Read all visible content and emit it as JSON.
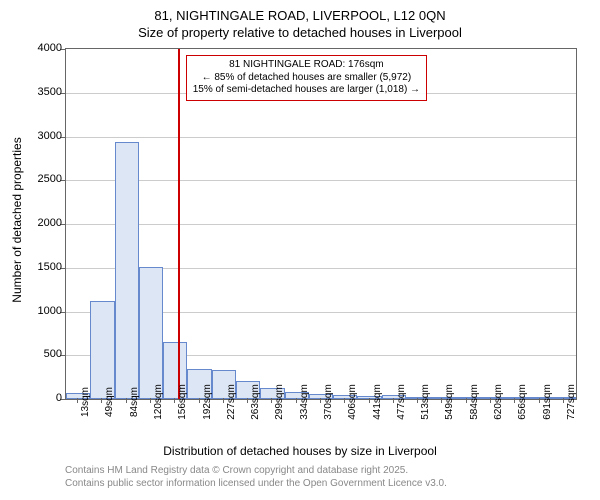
{
  "header": {
    "title": "81, NIGHTINGALE ROAD, LIVERPOOL, L12 0QN",
    "subtitle": "Size of property relative to detached houses in Liverpool"
  },
  "chart": {
    "type": "histogram",
    "ylabel": "Number of detached properties",
    "xlabel": "Distribution of detached houses by size in Liverpool",
    "ylim": [
      0,
      4000
    ],
    "ytick_step": 500,
    "yticks": [
      0,
      500,
      1000,
      1500,
      2000,
      2500,
      3000,
      3500,
      4000
    ],
    "xtick_labels": [
      "13sqm",
      "49sqm",
      "84sqm",
      "120sqm",
      "156sqm",
      "192sqm",
      "227sqm",
      "263sqm",
      "299sqm",
      "334sqm",
      "370sqm",
      "406sqm",
      "441sqm",
      "477sqm",
      "513sqm",
      "549sqm",
      "584sqm",
      "620sqm",
      "656sqm",
      "691sqm",
      "727sqm"
    ],
    "bar_values": [
      70,
      1120,
      2940,
      1510,
      650,
      340,
      330,
      210,
      130,
      80,
      60,
      50,
      40,
      50,
      10,
      10,
      8,
      6,
      5,
      4,
      3
    ],
    "bar_fill": "#dde6f4",
    "bar_border": "#6688cc",
    "grid_color": "#cccccc",
    "axis_color": "#666666",
    "background_color": "#ffffff",
    "marker": {
      "position_index": 4.6,
      "color": "#cc0000"
    },
    "annotation": {
      "line1": "81 NIGHTINGALE ROAD: 176sqm",
      "line2": "← 85% of detached houses are smaller (5,972)",
      "line3": "15% of semi-detached houses are larger (1,018) →",
      "border_color": "#cc0000"
    }
  },
  "footer": {
    "line1": "Contains HM Land Registry data © Crown copyright and database right 2025.",
    "line2": "Contains public sector information licensed under the Open Government Licence v3.0."
  }
}
